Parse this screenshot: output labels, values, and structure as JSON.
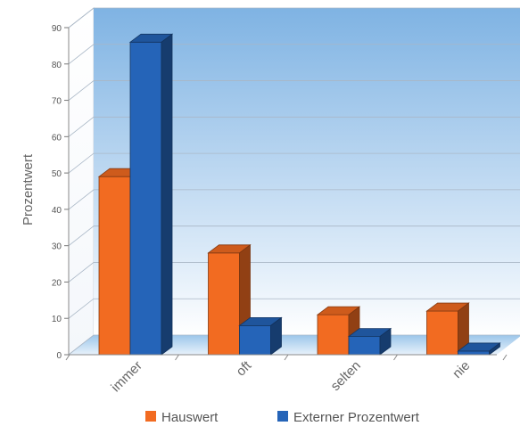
{
  "chart_data": {
    "type": "bar",
    "categories": [
      "immer",
      "oft",
      "selten",
      "nie"
    ],
    "series": [
      {
        "name": "Hauswert",
        "values": [
          49,
          28,
          11,
          12
        ],
        "color": "#F26B21"
      },
      {
        "name": "Externer Prozentwert",
        "values": [
          86,
          8,
          5,
          1
        ],
        "color": "#2564B8"
      }
    ],
    "ylabel": "Prozentwert",
    "xlabel": "",
    "title": "",
    "ylim": [
      0,
      90
    ],
    "yticks": [
      "0",
      "10",
      "20",
      "30",
      "40",
      "50",
      "60",
      "70",
      "80",
      "90"
    ],
    "grid": true,
    "legend_position": "bottom"
  }
}
